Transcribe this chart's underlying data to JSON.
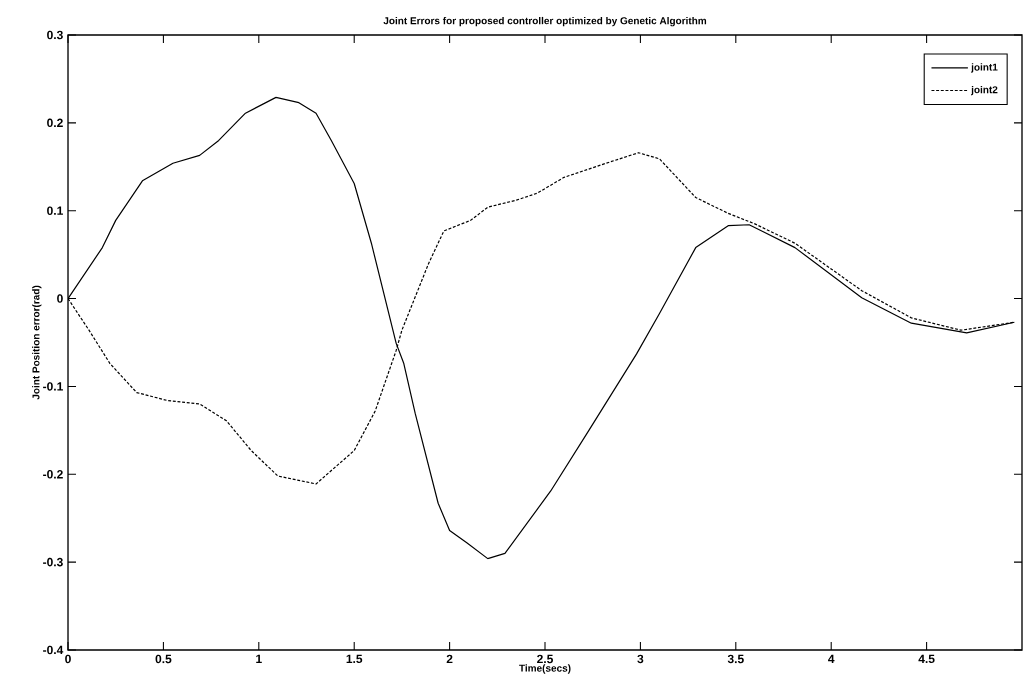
{
  "chart_data": {
    "type": "line",
    "title": "Joint Errors for proposed controller optimized by Genetic Algorithm",
    "xlabel": "Time(secs)",
    "ylabel": "Joint Position error(rad)",
    "xlim": [
      0,
      5
    ],
    "ylim": [
      -0.4,
      0.3
    ],
    "xticks": [
      0,
      0.5,
      1,
      1.5,
      2,
      2.5,
      3,
      3.5,
      4,
      4.5
    ],
    "yticks": [
      -0.4,
      -0.3,
      -0.2,
      -0.1,
      0,
      0.1,
      0.2,
      0.3
    ],
    "grid": false,
    "legend": "top right",
    "marker": "none",
    "series": [
      {
        "name": "joint1",
        "color": "#000000",
        "line_style": "solid",
        "x": [
          0,
          0.18,
          0.25,
          0.39,
          0.55,
          0.69,
          0.79,
          0.93,
          1.09,
          1.21,
          1.3,
          1.38,
          1.5,
          1.59,
          1.72,
          1.76,
          1.82,
          1.94,
          2.0,
          2.09,
          2.2,
          2.29,
          2.53,
          2.73,
          2.98,
          3.1,
          3.29,
          3.46,
          3.57,
          3.81,
          4.16,
          4.42,
          4.71,
          4.96
        ],
        "values": [
          0,
          0.058,
          0.089,
          0.134,
          0.154,
          0.163,
          0.18,
          0.211,
          0.229,
          0.223,
          0.211,
          0.18,
          0.131,
          0.063,
          -0.051,
          -0.074,
          -0.131,
          -0.233,
          -0.264,
          -0.278,
          -0.296,
          -0.29,
          -0.219,
          -0.15,
          -0.063,
          -0.017,
          0.058,
          0.083,
          0.084,
          0.058,
          0.001,
          -0.028,
          -0.039,
          -0.027
        ]
      },
      {
        "name": "joint2",
        "color": "#000000",
        "line_style": "dashed",
        "x": [
          0,
          0.11,
          0.22,
          0.36,
          0.52,
          0.69,
          0.83,
          0.96,
          1.1,
          1.3,
          1.5,
          1.61,
          1.72,
          1.75,
          1.89,
          1.97,
          2.11,
          2.2,
          2.35,
          2.46,
          2.6,
          2.82,
          2.99,
          3.1,
          3.29,
          3.46,
          3.6,
          3.81,
          4.16,
          4.42,
          4.68,
          4.96
        ],
        "values": [
          0,
          -0.036,
          -0.074,
          -0.107,
          -0.116,
          -0.12,
          -0.139,
          -0.173,
          -0.202,
          -0.211,
          -0.173,
          -0.128,
          -0.059,
          -0.036,
          0.04,
          0.077,
          0.089,
          0.104,
          0.112,
          0.12,
          0.138,
          0.154,
          0.166,
          0.159,
          0.115,
          0.097,
          0.085,
          0.063,
          0.009,
          -0.022,
          -0.036,
          -0.027
        ]
      }
    ]
  }
}
